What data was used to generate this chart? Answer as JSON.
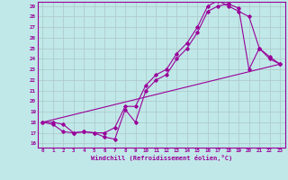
{
  "xlabel": "Windchill (Refroidissement éolien,°C)",
  "bg_color": "#c0e8e8",
  "line_color": "#990099",
  "grid_color": "#b0cccc",
  "xlim": [
    -0.5,
    23.5
  ],
  "ylim": [
    15.6,
    29.4
  ],
  "xticks": [
    0,
    1,
    2,
    3,
    4,
    5,
    6,
    7,
    8,
    9,
    10,
    11,
    12,
    13,
    14,
    15,
    16,
    17,
    18,
    19,
    20,
    21,
    22,
    23
  ],
  "yticks": [
    16,
    17,
    18,
    19,
    20,
    21,
    22,
    23,
    24,
    25,
    26,
    27,
    28,
    29
  ],
  "line1_x": [
    0,
    1,
    2,
    3,
    4,
    5,
    6,
    7,
    8,
    9,
    10,
    11,
    12,
    13,
    14,
    15,
    16,
    17,
    18,
    19,
    20,
    21,
    22,
    23
  ],
  "line1_y": [
    18,
    17.8,
    17.1,
    17.0,
    17.1,
    17.0,
    16.6,
    16.4,
    19.2,
    18.0,
    21.0,
    22.0,
    22.5,
    24.0,
    25.0,
    26.5,
    28.5,
    29.0,
    29.2,
    28.8,
    23.0,
    25.0,
    24.2,
    23.5
  ],
  "line2_x": [
    0,
    1,
    2,
    3,
    4,
    5,
    6,
    7,
    8,
    9,
    10,
    11,
    12,
    13,
    14,
    15,
    16,
    17,
    18,
    19,
    20,
    21,
    22,
    23
  ],
  "line2_y": [
    18,
    18.0,
    17.8,
    17.0,
    17.1,
    17.0,
    17.0,
    17.5,
    19.5,
    19.5,
    21.5,
    22.5,
    23.0,
    24.5,
    25.5,
    27.0,
    29.0,
    29.5,
    29.0,
    28.5,
    28.0,
    25.0,
    24.0,
    23.5
  ],
  "line3_x": [
    0,
    23
  ],
  "line3_y": [
    18,
    23.5
  ]
}
